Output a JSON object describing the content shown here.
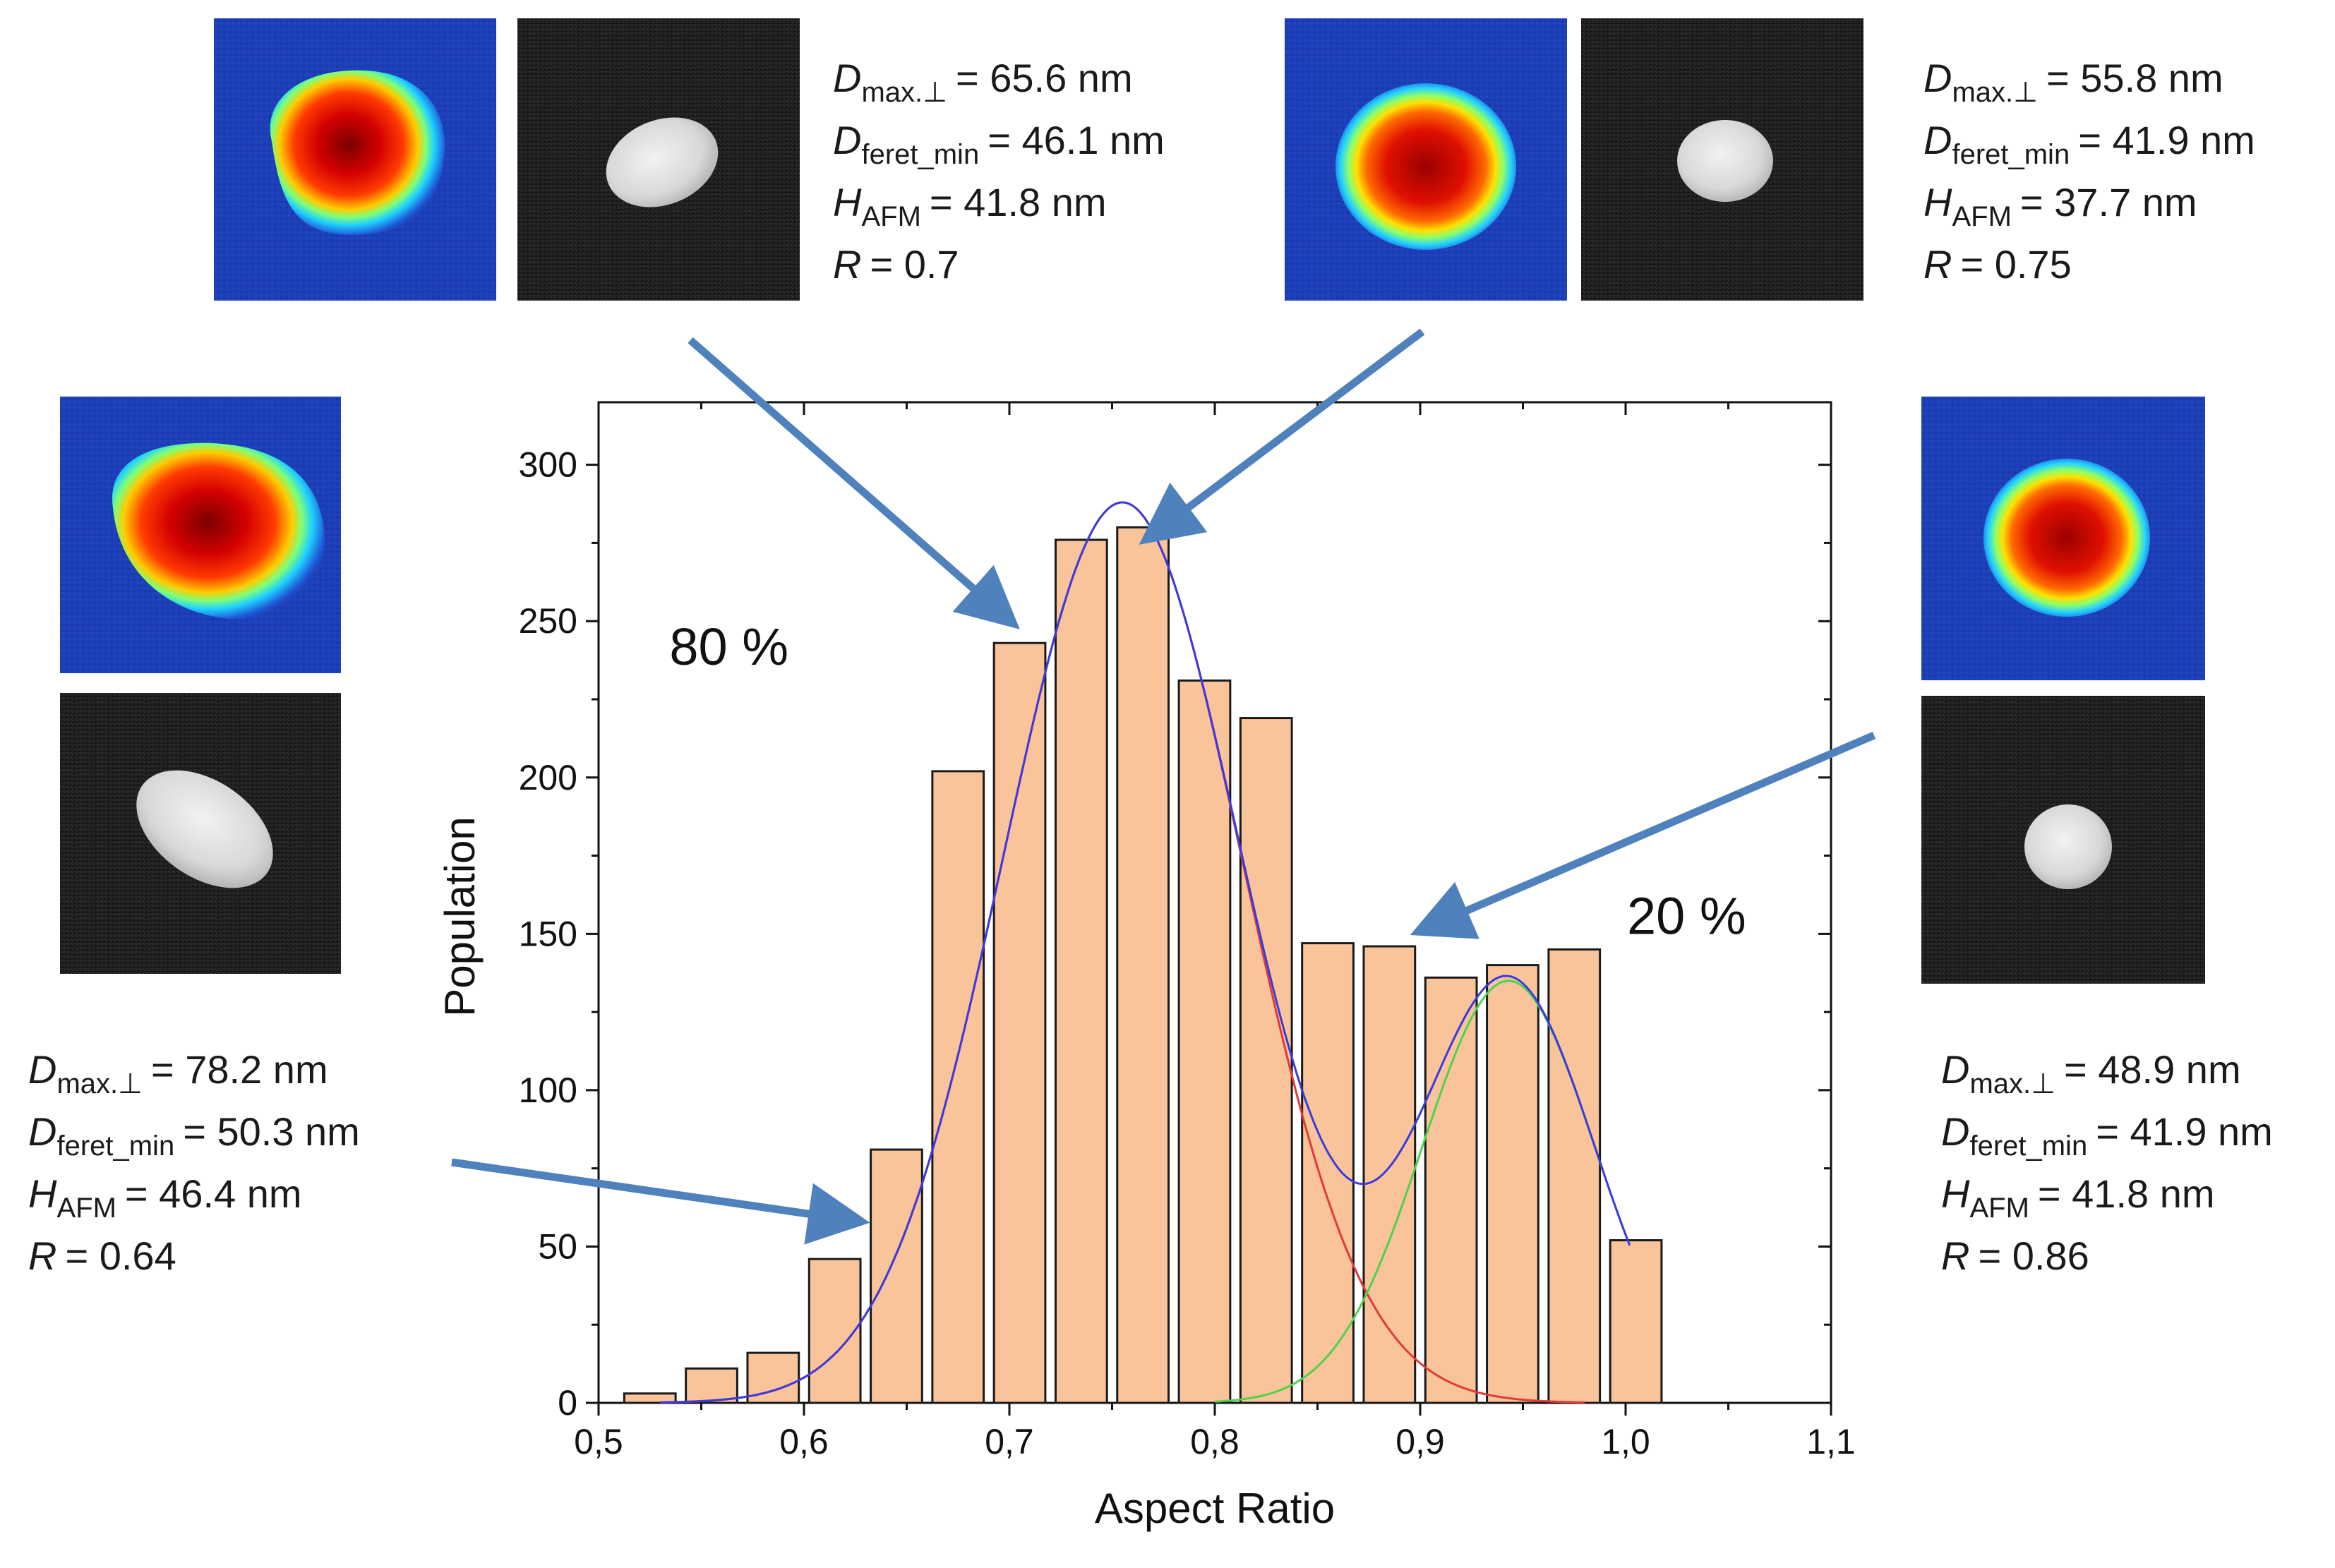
{
  "chart_data": {
    "type": "bar",
    "xlabel": "Aspect Ratio",
    "ylabel": "Population",
    "xlim": [
      0.5,
      1.1
    ],
    "ylim": [
      0,
      320
    ],
    "x_ticks": [
      "0,5",
      "0,6",
      "0,7",
      "0,8",
      "0,9",
      "1,0",
      "1,1"
    ],
    "y_ticks": [
      "0",
      "50",
      "100",
      "150",
      "200",
      "250",
      "300"
    ],
    "bar_width": 0.025,
    "bars": [
      {
        "x": 0.525,
        "value": 3
      },
      {
        "x": 0.555,
        "value": 11
      },
      {
        "x": 0.585,
        "value": 16
      },
      {
        "x": 0.615,
        "value": 46
      },
      {
        "x": 0.645,
        "value": 81
      },
      {
        "x": 0.675,
        "value": 202
      },
      {
        "x": 0.705,
        "value": 243
      },
      {
        "x": 0.735,
        "value": 276
      },
      {
        "x": 0.765,
        "value": 280
      },
      {
        "x": 0.795,
        "value": 231
      },
      {
        "x": 0.825,
        "value": 219
      },
      {
        "x": 0.855,
        "value": 147
      },
      {
        "x": 0.885,
        "value": 146
      },
      {
        "x": 0.915,
        "value": 136
      },
      {
        "x": 0.945,
        "value": 140
      },
      {
        "x": 0.975,
        "value": 145
      },
      {
        "x": 1.005,
        "value": 52
      }
    ],
    "fits": [
      {
        "name": "Peak 1",
        "color": "#e03a3a",
        "center": 0.755,
        "amplitude": 288,
        "sigma": 0.058,
        "x_range": [
          0.53,
          0.98
        ]
      },
      {
        "name": "Peak 2",
        "color": "#4fd14f",
        "center": 0.943,
        "amplitude": 135,
        "sigma": 0.042,
        "x_range": [
          0.8,
          1.003
        ]
      },
      {
        "name": "Cumulative fit",
        "color": "#3a3ae0",
        "x_range": [
          0.53,
          1.003
        ]
      }
    ],
    "annotations": [
      {
        "text": "80 %",
        "x": 0.67,
        "y": 236
      },
      {
        "text": "20 %",
        "x": 0.93,
        "y": 150
      }
    ],
    "bar_color": "#f9c49a",
    "bar_edge": "#1a1a1a"
  },
  "particles": [
    {
      "id": "top-left",
      "dmax_label": "D",
      "dmax_sub": "max.⊥",
      "dmax_value": "= 65.6 nm",
      "dferet_label": "D",
      "dferet_sub": "feret_min",
      "dferet_value": "= 46.1 nm",
      "hafm_label": "H",
      "hafm_sub": "AFM",
      "hafm_value": "= 41.8 nm",
      "r_label": "R",
      "r_value": "= 0.7"
    },
    {
      "id": "top-right",
      "dmax_label": "D",
      "dmax_sub": "max.⊥",
      "dmax_value": "= 55.8 nm",
      "dferet_label": "D",
      "dferet_sub": "feret_min",
      "dferet_value": "= 41.9 nm",
      "hafm_label": "H",
      "hafm_sub": "AFM",
      "hafm_value": "= 37.7 nm",
      "r_label": "R",
      "r_value": "= 0.75"
    },
    {
      "id": "left",
      "dmax_label": "D",
      "dmax_sub": "max.⊥",
      "dmax_value": "= 78.2 nm",
      "dferet_label": "D",
      "dferet_sub": "feret_min",
      "dferet_value": "= 50.3 nm",
      "hafm_label": "H",
      "hafm_sub": "AFM",
      "hafm_value": "= 46.4 nm",
      "r_label": "R",
      "r_value": "= 0.64"
    },
    {
      "id": "right",
      "dmax_label": "D",
      "dmax_sub": "max.⊥",
      "dmax_value": "= 48.9 nm",
      "dferet_label": "D",
      "dferet_sub": "feret_min",
      "dferet_value": "= 41.9 nm",
      "hafm_label": "H",
      "hafm_sub": "AFM",
      "hafm_value": "= 41.8 nm",
      "r_label": "R",
      "r_value": "= 0.86"
    }
  ],
  "colors": {
    "arrow": "#4f81bd",
    "afm_bg": "#1d3fb8",
    "sem_bg": "#1e1e1e"
  }
}
